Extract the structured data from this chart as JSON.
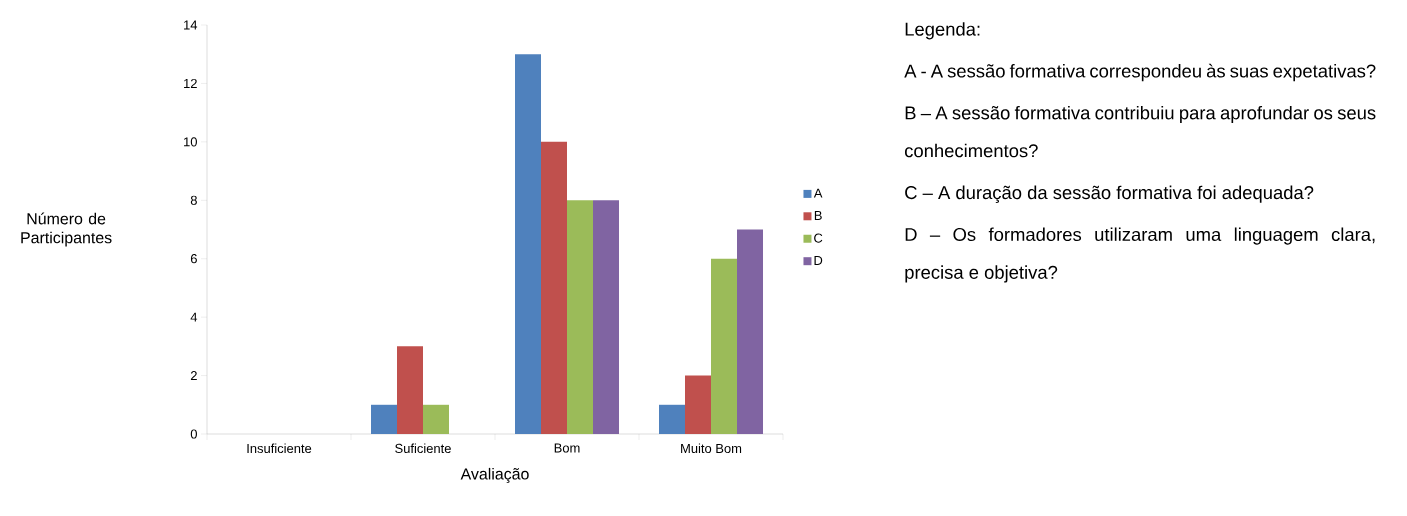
{
  "chart_data": {
    "type": "bar",
    "xlabel": "Avaliação",
    "ylabel": "Número de Participantes",
    "categories": [
      "Insuficiente",
      "Suficiente",
      "Bom",
      "Muito Bom"
    ],
    "series": [
      {
        "name": "A",
        "color": "#4f81bd",
        "values": [
          0,
          1,
          13,
          1
        ]
      },
      {
        "name": "B",
        "color": "#c0504d",
        "values": [
          0,
          3,
          10,
          2
        ]
      },
      {
        "name": "C",
        "color": "#9bbb59",
        "values": [
          0,
          1,
          8,
          6
        ]
      },
      {
        "name": "D",
        "color": "#8064a2",
        "values": [
          0,
          0,
          8,
          7
        ]
      }
    ],
    "ylim": [
      0,
      14
    ],
    "yticks": [
      0,
      2,
      4,
      6,
      8,
      10,
      12,
      14
    ],
    "grid": false,
    "legend": "right",
    "annotations": [
      "Legenda:",
      "A - A sessão formativa correspondeu às suas expetativas?",
      "B – A sessão formativa contribuiu para aprofundar os seus conhecimentos?",
      "C – A duração da sessão formativa foi adequada?",
      "D – Os formadores utilizaram uma linguagem clara, precisa e objetiva?"
    ]
  }
}
